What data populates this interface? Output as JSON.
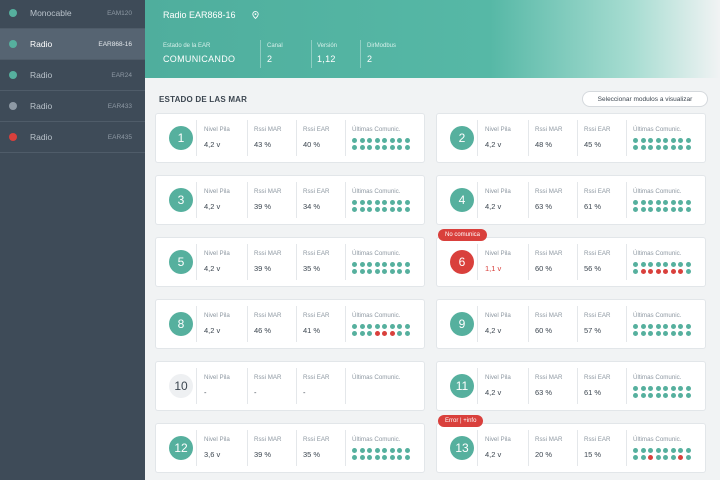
{
  "colors": {
    "green": "#56b09e",
    "red": "#d9403c",
    "gray": "#8e99a4"
  },
  "sidebar": {
    "items": [
      {
        "label": "Monocable",
        "code": "EAM120",
        "status": "green",
        "active": false
      },
      {
        "label": "Radio",
        "code": "EAR868-16",
        "status": "green",
        "active": true
      },
      {
        "label": "Radio",
        "code": "EAR24",
        "status": "green",
        "active": false
      },
      {
        "label": "Radio",
        "code": "EAR433",
        "status": "gray",
        "active": false
      },
      {
        "label": "Radio",
        "code": "EAR435",
        "status": "red",
        "active": false
      }
    ]
  },
  "header": {
    "title": "Radio EAR868-16",
    "location_icon": "location-pin-icon",
    "estado_label": "Estado de la EAR",
    "estado_value": "COMUNICANDO",
    "canal_label": "Canal",
    "canal_value": "2",
    "version_label": "Versión",
    "version_value": "1,12",
    "dirmodbus_label": "DirModbus",
    "dirmodbus_value": "2"
  },
  "section": {
    "title": "ESTADO DE LAS MAR",
    "select_button": "Seleccionar modulos a visualizar"
  },
  "field_labels": {
    "nivel": "Nivel Pila",
    "rssi_mar": "Rssi MAR",
    "rssi_ear": "Rssi EAR",
    "ultimas": "Últimas Comunic."
  },
  "cards": [
    {
      "num": "1",
      "state": "ok",
      "nivel": "4,2 v",
      "rssi_mar": "43 %",
      "rssi_ear": "40 %",
      "tag": "",
      "dots": [
        "g",
        "g",
        "g",
        "g",
        "g",
        "g",
        "g",
        "g",
        "g",
        "g",
        "g",
        "g",
        "g",
        "g",
        "g",
        "g"
      ]
    },
    {
      "num": "2",
      "state": "ok",
      "nivel": "4,2 v",
      "rssi_mar": "48 %",
      "rssi_ear": "45 %",
      "tag": "",
      "dots": [
        "g",
        "g",
        "g",
        "g",
        "g",
        "g",
        "g",
        "g",
        "g",
        "g",
        "g",
        "g",
        "g",
        "g",
        "g",
        "g"
      ]
    },
    {
      "num": "3",
      "state": "ok",
      "nivel": "4,2 v",
      "rssi_mar": "39 %",
      "rssi_ear": "34 %",
      "tag": "",
      "dots": [
        "g",
        "g",
        "g",
        "g",
        "g",
        "g",
        "g",
        "g",
        "g",
        "g",
        "g",
        "g",
        "g",
        "g",
        "g",
        "g"
      ]
    },
    {
      "num": "4",
      "state": "ok",
      "nivel": "4,2 v",
      "rssi_mar": "63 %",
      "rssi_ear": "61 %",
      "tag": "",
      "dots": [
        "g",
        "g",
        "g",
        "g",
        "g",
        "g",
        "g",
        "g",
        "g",
        "g",
        "g",
        "g",
        "g",
        "g",
        "g",
        "g"
      ]
    },
    {
      "num": "5",
      "state": "ok",
      "nivel": "4,2 v",
      "rssi_mar": "39 %",
      "rssi_ear": "35 %",
      "tag": "",
      "dots": [
        "g",
        "g",
        "g",
        "g",
        "g",
        "g",
        "g",
        "g",
        "g",
        "g",
        "g",
        "g",
        "g",
        "g",
        "g",
        "g"
      ]
    },
    {
      "num": "6",
      "state": "error",
      "nivel": "1,1 v",
      "rssi_mar": "60 %",
      "rssi_ear": "56 %",
      "tag": "No comunica",
      "dots": [
        "g",
        "g",
        "g",
        "g",
        "g",
        "g",
        "g",
        "g",
        "g",
        "r",
        "r",
        "r",
        "r",
        "r",
        "r",
        "g"
      ]
    },
    {
      "num": "8",
      "state": "ok",
      "nivel": "4,2 v",
      "rssi_mar": "46 %",
      "rssi_ear": "41 %",
      "tag": "",
      "dots": [
        "g",
        "g",
        "g",
        "g",
        "g",
        "g",
        "g",
        "g",
        "g",
        "g",
        "g",
        "r",
        "r",
        "r",
        "g",
        "g"
      ]
    },
    {
      "num": "9",
      "state": "ok",
      "nivel": "4,2 v",
      "rssi_mar": "60 %",
      "rssi_ear": "57 %",
      "tag": "",
      "dots": [
        "g",
        "g",
        "g",
        "g",
        "g",
        "g",
        "g",
        "g",
        "g",
        "g",
        "g",
        "g",
        "g",
        "g",
        "g",
        "g"
      ]
    },
    {
      "num": "10",
      "state": "none",
      "nivel": "-",
      "rssi_mar": "-",
      "rssi_ear": "-",
      "tag": "",
      "dots": []
    },
    {
      "num": "11",
      "state": "ok",
      "nivel": "4,2 v",
      "rssi_mar": "63 %",
      "rssi_ear": "61 %",
      "tag": "",
      "dots": [
        "g",
        "g",
        "g",
        "g",
        "g",
        "g",
        "g",
        "g",
        "g",
        "g",
        "g",
        "g",
        "g",
        "g",
        "g",
        "g"
      ]
    },
    {
      "num": "12",
      "state": "ok",
      "nivel": "3,6 v",
      "rssi_mar": "39 %",
      "rssi_ear": "35 %",
      "tag": "",
      "dots": [
        "g",
        "g",
        "g",
        "g",
        "g",
        "g",
        "g",
        "g",
        "g",
        "g",
        "g",
        "g",
        "g",
        "g",
        "g",
        "g"
      ]
    },
    {
      "num": "13",
      "state": "ok",
      "nivel": "4,2 v",
      "rssi_mar": "20 %",
      "rssi_ear": "15 %",
      "tag": "Error | +info",
      "dots": [
        "g",
        "g",
        "g",
        "g",
        "g",
        "g",
        "g",
        "g",
        "g",
        "g",
        "r",
        "g",
        "g",
        "g",
        "r",
        "g"
      ]
    }
  ]
}
